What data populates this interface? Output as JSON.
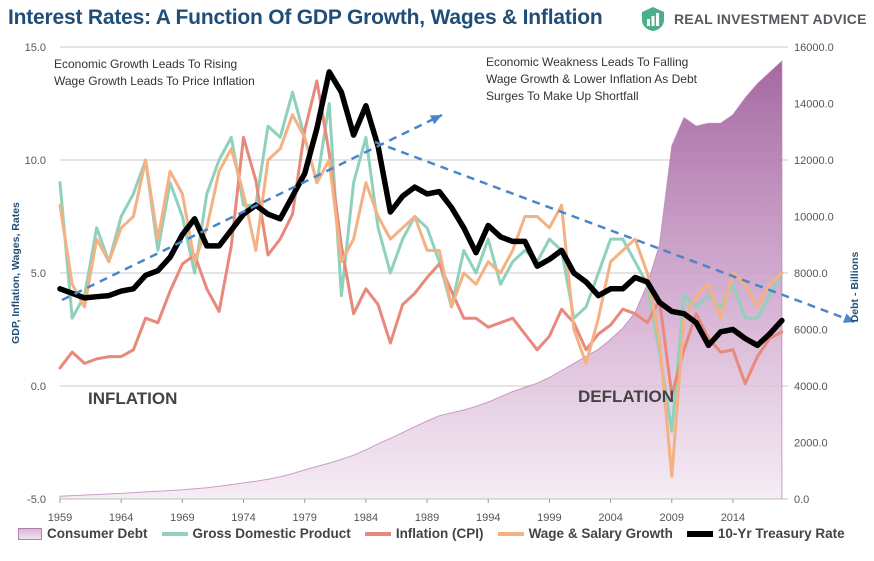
{
  "title": "Interest Rates: A Function Of GDP Growth, Wages & Inflation",
  "brand": {
    "name": "REAL INVESTMENT ADVICE",
    "logo_icon": "rising-bars-icon",
    "logo_color": "#4caf8a"
  },
  "annotations": {
    "left_note": [
      "Economic Growth Leads To Rising",
      "Wage Growth Leads To Price Inflation"
    ],
    "right_note": [
      "Economic Weakness Leads To Falling",
      "Wage Growth & Lower Inflation As Debt",
      "Surges To Make Up Shortfall"
    ],
    "inflation_label": "INFLATION",
    "deflation_label": "DEFLATION"
  },
  "chart_data": {
    "type": "line",
    "title": "Interest Rates: A Function Of GDP Growth, Wages & Inflation",
    "ylabel": "GDP, Inflation, Wages, Rates",
    "y2label": "Debt - Billions",
    "ylim": [
      -5,
      15
    ],
    "y2lim": [
      0,
      16000
    ],
    "yticks": [
      "15.0",
      "10.0",
      "5.0",
      "0.0",
      "-5.0"
    ],
    "y2ticks": [
      "16000.0",
      "14000.0",
      "12000.0",
      "10000.0",
      "8000.0",
      "6000.0",
      "4000.0",
      "2000.0",
      "0.0"
    ],
    "xticks": [
      "1959",
      "1964",
      "1969",
      "1974",
      "1979",
      "1984",
      "1989",
      "1994",
      "1999",
      "2004",
      "2009",
      "2014"
    ],
    "xlim": [
      1959,
      2018.5
    ],
    "grid": true,
    "legend_position": "bottom",
    "x": [
      1959,
      1960,
      1961,
      1962,
      1963,
      1964,
      1965,
      1966,
      1967,
      1968,
      1969,
      1970,
      1971,
      1972,
      1973,
      1974,
      1975,
      1976,
      1977,
      1978,
      1979,
      1980,
      1981,
      1982,
      1983,
      1984,
      1985,
      1986,
      1987,
      1988,
      1989,
      1990,
      1991,
      1992,
      1993,
      1994,
      1995,
      1996,
      1997,
      1998,
      1999,
      2000,
      2001,
      2002,
      2003,
      2004,
      2005,
      2006,
      2007,
      2008,
      2009,
      2010,
      2011,
      2012,
      2013,
      2014,
      2015,
      2016,
      2017,
      2018
    ],
    "series": [
      {
        "name": "Consumer Debt",
        "axis": "right",
        "kind": "area",
        "color": "#b57cb0",
        "values": [
          100,
          120,
          140,
          160,
          180,
          200,
          225,
          250,
          275,
          300,
          330,
          360,
          400,
          450,
          510,
          570,
          630,
          700,
          790,
          900,
          1030,
          1150,
          1270,
          1400,
          1550,
          1740,
          1950,
          2150,
          2350,
          2560,
          2760,
          2950,
          3050,
          3150,
          3280,
          3430,
          3620,
          3800,
          3950,
          4100,
          4300,
          4550,
          4800,
          5050,
          5300,
          5650,
          6050,
          6600,
          7600,
          9000,
          12500,
          13500,
          13200,
          13300,
          13300,
          13600,
          14200,
          14700,
          15100,
          15500
        ]
      },
      {
        "name": "Gross Domestic Product",
        "axis": "left",
        "kind": "line",
        "color": "#8fd1bb",
        "values": [
          9.0,
          3.0,
          4.0,
          7.0,
          5.5,
          7.5,
          8.5,
          10.0,
          6.0,
          9.0,
          7.5,
          5.0,
          8.5,
          10.0,
          11.0,
          8.0,
          8.0,
          11.5,
          11.0,
          13.0,
          11.0,
          9.0,
          12.5,
          4.0,
          9.0,
          11.0,
          7.0,
          5.0,
          6.5,
          7.5,
          7.0,
          5.5,
          3.5,
          6.0,
          5.0,
          6.5,
          4.5,
          5.5,
          6.0,
          5.5,
          6.5,
          6.0,
          3.0,
          3.5,
          5.0,
          6.5,
          6.5,
          5.5,
          4.5,
          1.5,
          -2.0,
          4.0,
          3.5,
          4.0,
          3.5,
          4.5,
          3.0,
          3.0,
          4.0,
          5.0
        ]
      },
      {
        "name": "Inflation (CPI)",
        "axis": "left",
        "kind": "line",
        "color": "#e8897c",
        "values": [
          0.8,
          1.5,
          1.0,
          1.2,
          1.3,
          1.3,
          1.6,
          3.0,
          2.8,
          4.2,
          5.4,
          5.8,
          4.3,
          3.3,
          6.2,
          11.0,
          9.1,
          5.8,
          6.5,
          7.6,
          11.3,
          13.5,
          10.3,
          6.2,
          3.2,
          4.3,
          3.6,
          1.9,
          3.6,
          4.1,
          4.8,
          5.4,
          4.2,
          3.0,
          3.0,
          2.6,
          2.8,
          3.0,
          2.3,
          1.6,
          2.2,
          3.4,
          2.8,
          1.6,
          2.3,
          2.7,
          3.4,
          3.2,
          2.8,
          3.8,
          -0.4,
          1.6,
          3.2,
          2.1,
          1.5,
          1.6,
          0.1,
          1.3,
          2.1,
          2.4
        ]
      },
      {
        "name": "Wage & Salary Growth",
        "axis": "left",
        "kind": "line",
        "color": "#f4b183",
        "values": [
          8.0,
          4.5,
          3.5,
          6.5,
          5.5,
          7.0,
          7.5,
          10.0,
          6.5,
          9.5,
          8.5,
          5.5,
          7.0,
          9.5,
          10.5,
          8.5,
          6.0,
          10.0,
          10.5,
          12.0,
          11.0,
          9.0,
          10.0,
          5.5,
          6.5,
          9.0,
          7.5,
          6.5,
          7.0,
          7.5,
          6.0,
          6.0,
          3.5,
          5.0,
          4.5,
          5.5,
          5.0,
          6.0,
          7.5,
          7.5,
          7.0,
          8.0,
          2.5,
          1.0,
          3.0,
          5.5,
          6.0,
          6.5,
          5.0,
          2.0,
          -4.0,
          3.0,
          4.0,
          4.5,
          3.0,
          5.0,
          4.5,
          3.5,
          4.5,
          5.0
        ]
      },
      {
        "name": "10-Yr Treasury Rate",
        "axis": "left",
        "kind": "line",
        "color": "#000000",
        "values": [
          4.3,
          4.1,
          3.9,
          3.95,
          4.0,
          4.2,
          4.3,
          4.9,
          5.1,
          5.7,
          6.7,
          7.4,
          6.2,
          6.2,
          6.9,
          7.6,
          8.0,
          7.6,
          7.4,
          8.4,
          9.4,
          11.4,
          13.9,
          13.0,
          11.1,
          12.4,
          10.6,
          7.7,
          8.4,
          8.8,
          8.5,
          8.6,
          7.9,
          7.0,
          5.9,
          7.1,
          6.6,
          6.4,
          6.4,
          5.3,
          5.6,
          6.0,
          5.0,
          4.6,
          4.0,
          4.3,
          4.3,
          4.8,
          4.6,
          3.7,
          3.3,
          3.2,
          2.8,
          1.8,
          2.4,
          2.5,
          2.1,
          1.8,
          2.3,
          2.9
        ]
      }
    ]
  },
  "legend": {
    "items": [
      {
        "label": "Consumer Debt",
        "kind": "area"
      },
      {
        "label": "Gross Domestic Product",
        "kind": "line",
        "color": "#8fd1bb"
      },
      {
        "label": "Inflation (CPI)",
        "kind": "line",
        "color": "#e8897c"
      },
      {
        "label": "Wage & Salary Growth",
        "kind": "line",
        "color": "#f4b183"
      },
      {
        "label": "10-Yr Treasury Rate",
        "kind": "line",
        "color": "#000000"
      }
    ]
  }
}
